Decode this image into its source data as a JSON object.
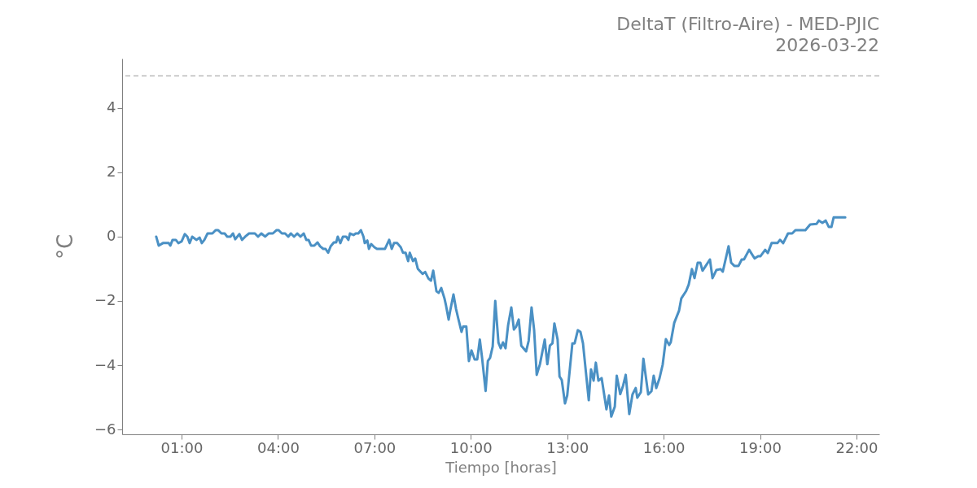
{
  "chart_data": {
    "type": "line",
    "title": "DeltaT (Filtro-Aire) - MED-PJIC",
    "subtitle": "2026-03-22",
    "xlabel": "Tiempo [horas]",
    "ylabel": "°C",
    "x": [
      0.21,
      0.29,
      0.42,
      0.6,
      0.65,
      0.72,
      0.82,
      0.9,
      1.0,
      1.1,
      1.18,
      1.25,
      1.33,
      1.46,
      1.56,
      1.63,
      1.71,
      1.81,
      1.96,
      2.06,
      2.14,
      2.24,
      2.34,
      2.42,
      2.52,
      2.6,
      2.67,
      2.8,
      2.88,
      2.98,
      3.1,
      3.28,
      3.38,
      3.48,
      3.6,
      3.71,
      3.84,
      3.95,
      4.02,
      4.12,
      4.22,
      4.32,
      4.4,
      4.5,
      4.6,
      4.7,
      4.8,
      4.88,
      4.95,
      5.03,
      5.13,
      5.23,
      5.31,
      5.41,
      5.48,
      5.56,
      5.64,
      5.74,
      5.81,
      5.86,
      5.94,
      6.02,
      6.12,
      6.19,
      6.24,
      6.35,
      6.42,
      6.5,
      6.58,
      6.66,
      6.7,
      6.78,
      6.83,
      6.9,
      7.0,
      7.08,
      7.33,
      7.46,
      7.54,
      7.61,
      7.71,
      7.82,
      7.89,
      7.97,
      8.05,
      8.1,
      8.2,
      8.27,
      8.35,
      8.5,
      8.58,
      8.68,
      8.76,
      8.83,
      8.93,
      9.0,
      9.08,
      9.18,
      9.23,
      9.31,
      9.36,
      9.46,
      9.54,
      9.61,
      9.71,
      9.76,
      9.86,
      9.94,
      10.02,
      10.12,
      10.2,
      10.28,
      10.35,
      10.46,
      10.53,
      10.6,
      10.68,
      10.76,
      10.86,
      10.93,
      11.0,
      11.08,
      11.16,
      11.26,
      11.34,
      11.41,
      11.49,
      11.57,
      11.72,
      11.8,
      11.89,
      11.97,
      12.05,
      12.15,
      12.3,
      12.38,
      12.46,
      12.54,
      12.6,
      12.7,
      12.76,
      12.83,
      12.93,
      13.0,
      13.16,
      13.23,
      13.33,
      13.41,
      13.49,
      13.67,
      13.74,
      13.82,
      13.89,
      13.97,
      14.07,
      14.22,
      14.3,
      14.37,
      14.48,
      14.54,
      14.65,
      14.74,
      14.82,
      14.93,
      15.03,
      15.13,
      15.18,
      15.29,
      15.37,
      15.52,
      15.62,
      15.69,
      15.77,
      15.87,
      15.97,
      16.07,
      16.17,
      16.22,
      16.33,
      16.48,
      16.55,
      16.7,
      16.78,
      16.88,
      16.96,
      17.06,
      17.14,
      17.21,
      17.31,
      17.44,
      17.52,
      17.64,
      17.77,
      17.84,
      18.02,
      18.1,
      18.2,
      18.33,
      18.43,
      18.5,
      18.66,
      18.83,
      18.94,
      19.01,
      19.16,
      19.24,
      19.36,
      19.54,
      19.62,
      19.72,
      19.87,
      20.0,
      20.1,
      20.41,
      20.56,
      20.76,
      20.83,
      20.94,
      21.04,
      21.14,
      21.22,
      21.29,
      21.65
    ],
    "series": [
      {
        "color": "#4a90c4",
        "values": [
          0.0,
          -0.28,
          -0.2,
          -0.2,
          -0.28,
          -0.1,
          -0.1,
          -0.2,
          -0.15,
          0.08,
          0.0,
          -0.2,
          0.0,
          -0.1,
          -0.03,
          -0.2,
          -0.1,
          0.1,
          0.1,
          0.2,
          0.2,
          0.1,
          0.1,
          0.0,
          0.0,
          0.1,
          -0.08,
          0.08,
          -0.1,
          0.0,
          0.1,
          0.1,
          0.0,
          0.1,
          0.0,
          0.1,
          0.1,
          0.2,
          0.2,
          0.1,
          0.1,
          0.0,
          0.1,
          0.0,
          0.1,
          0.0,
          0.1,
          -0.1,
          -0.1,
          -0.28,
          -0.28,
          -0.18,
          -0.3,
          -0.38,
          -0.38,
          -0.5,
          -0.3,
          -0.18,
          -0.18,
          0.0,
          -0.2,
          0.0,
          0.0,
          -0.1,
          0.1,
          0.05,
          0.1,
          0.1,
          0.2,
          0.0,
          -0.2,
          -0.12,
          -0.38,
          -0.23,
          -0.33,
          -0.38,
          -0.38,
          -0.1,
          -0.38,
          -0.2,
          -0.2,
          -0.33,
          -0.5,
          -0.5,
          -0.76,
          -0.5,
          -0.76,
          -0.68,
          -1.0,
          -1.16,
          -1.1,
          -1.3,
          -1.37,
          -1.06,
          -1.7,
          -1.75,
          -1.6,
          -1.92,
          -2.15,
          -2.58,
          -2.3,
          -1.8,
          -2.25,
          -2.55,
          -2.96,
          -2.8,
          -2.8,
          -3.87,
          -3.54,
          -3.82,
          -3.82,
          -3.2,
          -3.77,
          -4.8,
          -3.87,
          -3.77,
          -3.42,
          -2.0,
          -3.3,
          -3.47,
          -3.29,
          -3.47,
          -2.76,
          -2.2,
          -2.89,
          -2.8,
          -2.58,
          -3.39,
          -3.57,
          -3.24,
          -2.2,
          -2.91,
          -4.3,
          -3.97,
          -3.2,
          -3.97,
          -3.39,
          -3.32,
          -2.7,
          -3.2,
          -4.35,
          -4.46,
          -5.19,
          -4.94,
          -3.32,
          -3.32,
          -2.91,
          -2.96,
          -3.32,
          -5.09,
          -4.13,
          -4.48,
          -3.92,
          -4.48,
          -4.4,
          -5.37,
          -4.94,
          -5.6,
          -5.29,
          -4.33,
          -4.9,
          -4.63,
          -4.3,
          -5.52,
          -4.91,
          -4.71,
          -5.01,
          -4.84,
          -3.8,
          -4.91,
          -4.81,
          -4.33,
          -4.71,
          -4.41,
          -3.98,
          -3.19,
          -3.37,
          -3.29,
          -2.68,
          -2.3,
          -1.92,
          -1.69,
          -1.49,
          -1.01,
          -1.29,
          -0.81,
          -0.81,
          -1.06,
          -0.91,
          -0.71,
          -1.29,
          -1.04,
          -1.01,
          -1.09,
          -0.3,
          -0.81,
          -0.91,
          -0.91,
          -0.71,
          -0.71,
          -0.41,
          -0.68,
          -0.61,
          -0.61,
          -0.41,
          -0.51,
          -0.2,
          -0.2,
          -0.1,
          -0.2,
          0.1,
          0.1,
          0.2,
          0.2,
          0.38,
          0.4,
          0.5,
          0.43,
          0.5,
          0.3,
          0.3,
          0.6,
          0.6
        ]
      }
    ],
    "xlim": [
      -0.85,
      22.71
    ],
    "ylim": [
      -6.15,
      5.54
    ],
    "xticks": [
      {
        "value": 1,
        "label": "01:00"
      },
      {
        "value": 4,
        "label": "04:00"
      },
      {
        "value": 7,
        "label": "07:00"
      },
      {
        "value": 10,
        "label": "10:00"
      },
      {
        "value": 13,
        "label": "13:00"
      },
      {
        "value": 16,
        "label": "16:00"
      },
      {
        "value": 19,
        "label": "19:00"
      },
      {
        "value": 22,
        "label": "22:00"
      }
    ],
    "yticks": [
      {
        "value": -6,
        "label": "−6"
      },
      {
        "value": -4,
        "label": "−4"
      },
      {
        "value": -2,
        "label": "−2"
      },
      0,
      2,
      4
    ],
    "ref_lines": [
      {
        "axis": "y",
        "value": 5,
        "color": "#bbbbbb",
        "line_style": "dashed"
      }
    ],
    "grid": false,
    "line_style": "solid",
    "marker": "none"
  }
}
